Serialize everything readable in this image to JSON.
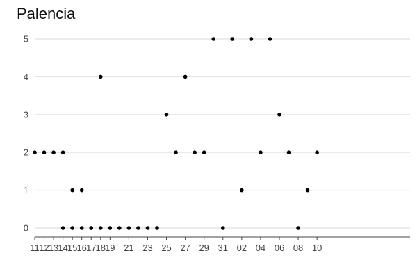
{
  "chart_data": {
    "type": "scatter",
    "title": "Palencia",
    "xlabel": "",
    "ylabel": "",
    "grid": true,
    "ylim": [
      0,
      5
    ],
    "xlim_index": [
      0,
      39
    ],
    "x_tick_labels": [
      "11",
      "13",
      "15",
      "17",
      "19",
      "21",
      "23",
      "25",
      "27",
      "29",
      "31",
      "02",
      "04",
      "06",
      "08",
      "10",
      "12",
      "14",
      "16",
      "18"
    ],
    "y_tick_labels": [
      "0",
      "1",
      "2",
      "3",
      "4",
      "5"
    ],
    "points": [
      {
        "x": "14",
        "y": 0
      },
      {
        "x": "15",
        "y": 0
      },
      {
        "x": "16",
        "y": 0
      },
      {
        "x": "17",
        "y": 0
      },
      {
        "x": "18",
        "y": 0
      },
      {
        "x": "19",
        "y": 0
      },
      {
        "x": "20",
        "y": 0
      },
      {
        "x": "21",
        "y": 0
      },
      {
        "x": "22",
        "y": 0
      },
      {
        "x": "23",
        "y": 0
      },
      {
        "x": "24",
        "y": 0
      },
      {
        "x": "25",
        "y": 3
      },
      {
        "x": "26",
        "y": 2
      },
      {
        "x": "27",
        "y": 4
      },
      {
        "x": "28",
        "y": 2
      },
      {
        "x": "29",
        "y": 2
      },
      {
        "x": "30",
        "y": 5
      },
      {
        "x": "31",
        "y": 0
      },
      {
        "x": "01",
        "y": 5
      },
      {
        "x": "02",
        "y": 1
      },
      {
        "x": "03",
        "y": 5
      },
      {
        "x": "04",
        "y": 2
      },
      {
        "x": "05",
        "y": 5
      },
      {
        "x": "06",
        "y": 3
      },
      {
        "x": "07",
        "y": 2
      },
      {
        "x": "08",
        "y": 0
      },
      {
        "x": "09",
        "y": 1
      },
      {
        "x": "10",
        "y": 2
      },
      {
        "x": "11",
        "y": 2
      },
      {
        "x": "12",
        "y": 2
      },
      {
        "x": "13",
        "y": 2
      },
      {
        "x": "14",
        "y": 2
      },
      {
        "x": "15",
        "y": 1
      },
      {
        "x": "16",
        "y": 1
      },
      {
        "x": "17",
        "y": 0
      },
      {
        "x": "18",
        "y": 4
      }
    ],
    "point_color": "#000000"
  }
}
